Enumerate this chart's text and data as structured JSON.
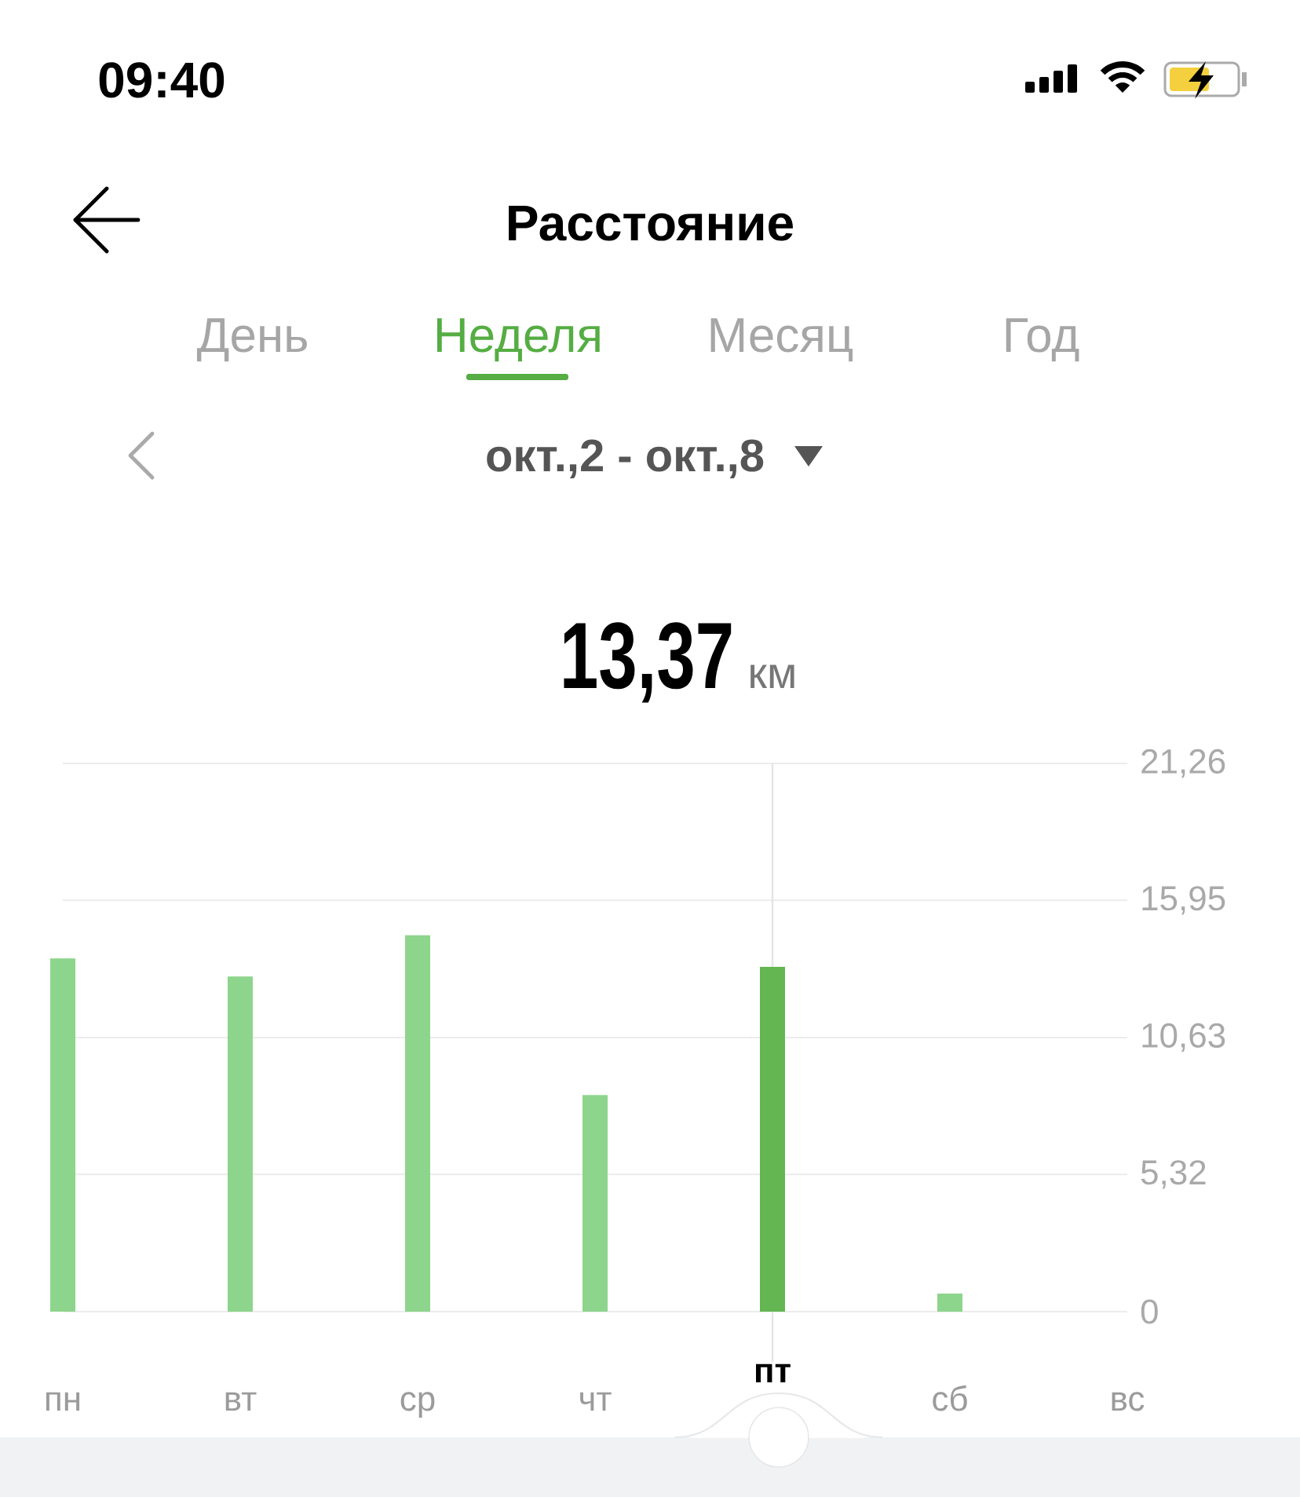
{
  "chart_data": {
    "type": "bar",
    "title": "Расстояние",
    "categories": [
      "пн",
      "вт",
      "ср",
      "чт",
      "пт",
      "сб",
      "вс"
    ],
    "values": [
      13.7,
      13.0,
      14.6,
      8.4,
      13.37,
      0.7,
      null
    ],
    "colors": [
      "#8dd58c",
      "#8dd58c",
      "#8dd58c",
      "#8dd58c",
      "#63b652",
      "#8dd58c",
      null
    ],
    "ylim": [
      0,
      21.26
    ],
    "yticks": [
      0,
      {
        "value": 5.32,
        "label": "5,32"
      },
      {
        "value": 10.63,
        "label": "10,63"
      },
      {
        "value": 15.95,
        "label": "15,95"
      },
      {
        "value": 21.26,
        "label": "21,26"
      }
    ],
    "grid": "y",
    "ref_lines": [
      {
        "axis": "x",
        "value": "пт",
        "color": "#e4e4e4"
      }
    ],
    "annotations": [
      "09:40",
      "День",
      "Неделя",
      "Месяц",
      "Год",
      "окт.,2 - окт.,8",
      "13,37",
      "км"
    ]
  }
}
